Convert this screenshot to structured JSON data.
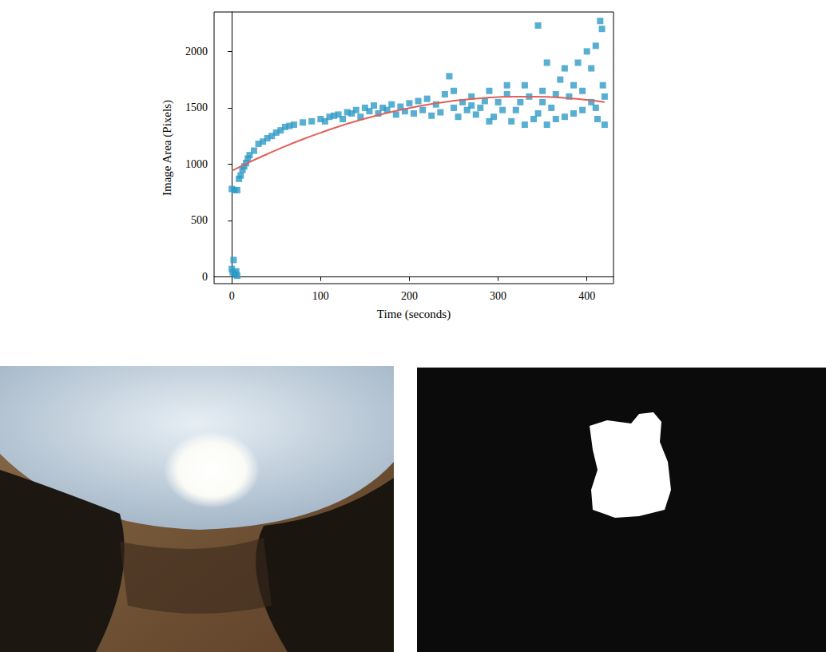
{
  "chart_data": {
    "type": "scatter",
    "xlabel": "Time (seconds)",
    "ylabel": "Image Area (Pixels)",
    "xlim": [
      -20,
      430
    ],
    "ylim": [
      -60,
      2350
    ],
    "xticks": [
      0,
      100,
      200,
      300,
      400
    ],
    "yticks": [
      0,
      500,
      1000,
      1500,
      2000
    ],
    "grid": false,
    "series": [
      {
        "type": "scatter",
        "color": "#2e9bc6",
        "marker": "square",
        "x": [
          0,
          1,
          2,
          3,
          4,
          5,
          6,
          0,
          3,
          6,
          8,
          10,
          12,
          14,
          16,
          18,
          20,
          25,
          30,
          35,
          40,
          45,
          50,
          55,
          60,
          65,
          70,
          80,
          90,
          100,
          110,
          120,
          130,
          140,
          150,
          160,
          170,
          180,
          190,
          200,
          210,
          220,
          230,
          240,
          245,
          250,
          260,
          270,
          280,
          290,
          300,
          310,
          320,
          330,
          340,
          345,
          350,
          355,
          360,
          370,
          380,
          385,
          390,
          395,
          400,
          405,
          410,
          412,
          415,
          417,
          418,
          420,
          420,
          105,
          115,
          125,
          135,
          145,
          155,
          165,
          175,
          185,
          195,
          205,
          215,
          225,
          235,
          255,
          265,
          275,
          285,
          295,
          305,
          315,
          325,
          335,
          345,
          355,
          365,
          375,
          385,
          395,
          405,
          410,
          375,
          365,
          350,
          330,
          310,
          290,
          270,
          250
        ],
        "values": [
          70,
          40,
          150,
          30,
          20,
          50,
          10,
          780,
          770,
          770,
          870,
          900,
          950,
          980,
          1010,
          1050,
          1080,
          1120,
          1180,
          1200,
          1230,
          1250,
          1280,
          1300,
          1330,
          1340,
          1350,
          1370,
          1380,
          1400,
          1420,
          1440,
          1460,
          1480,
          1500,
          1520,
          1500,
          1530,
          1510,
          1540,
          1560,
          1580,
          1530,
          1620,
          1780,
          1500,
          1550,
          1600,
          1500,
          1650,
          1550,
          1620,
          1480,
          1700,
          1400,
          2230,
          1650,
          1900,
          1500,
          1750,
          1600,
          1450,
          1900,
          1650,
          2000,
          1550,
          2050,
          1400,
          2270,
          2200,
          1700,
          1350,
          1600,
          1380,
          1430,
          1400,
          1450,
          1420,
          1470,
          1450,
          1480,
          1440,
          1470,
          1450,
          1480,
          1430,
          1460,
          1420,
          1480,
          1440,
          1560,
          1420,
          1480,
          1380,
          1550,
          1600,
          1450,
          1350,
          1620,
          1420,
          1700,
          1480,
          1850,
          1500,
          1850,
          1400,
          1550,
          1350,
          1700,
          1380,
          1520,
          1650
        ]
      },
      {
        "type": "line",
        "color": "#e0605a",
        "line_style": "solid",
        "x": [
          0,
          20,
          40,
          60,
          80,
          100,
          120,
          140,
          160,
          180,
          200,
          220,
          240,
          260,
          280,
          300,
          320,
          340,
          360,
          380,
          400,
          420
        ],
        "values": [
          940,
          1018,
          1090,
          1158,
          1221,
          1279,
          1333,
          1381,
          1425,
          1464,
          1498,
          1527,
          1551,
          1570,
          1585,
          1595,
          1599,
          1599,
          1595,
          1585,
          1570,
          1551
        ]
      }
    ]
  }
}
